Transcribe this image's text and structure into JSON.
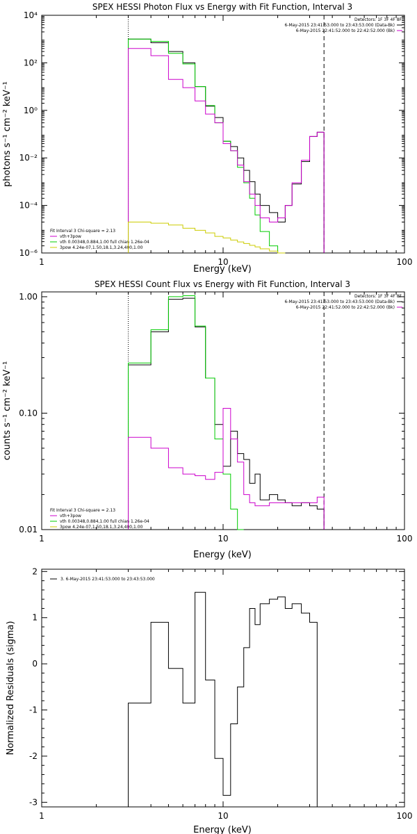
{
  "colors": {
    "data": "#000000",
    "bk": "#cc00cc",
    "total": "#cc00cc",
    "vth": "#00cc00",
    "thick2": "#cccc00"
  },
  "chart_data": [
    {
      "type": "line",
      "title": "SPEX HESSI Photon Flux vs Energy with Fit Function, Interval 3",
      "xlabel": "Energy (keV)",
      "ylabel": "photons s⁻¹ cm⁻² keV⁻¹",
      "xscale": "log",
      "yscale": "log",
      "xlim": [
        1,
        100
      ],
      "ylim": [
        1e-06,
        10000
      ],
      "xticks": [
        1,
        10,
        100
      ],
      "xticklabels": [
        "1",
        "10",
        "100"
      ],
      "yticks": [
        1e-06,
        0.0001,
        0.01,
        1,
        100,
        10000
      ],
      "yticklabels": [
        "10⁻⁶",
        "10⁻⁴",
        "10⁻²",
        "10⁰",
        "10²",
        "10⁴"
      ],
      "fit_range": [
        3,
        36
      ],
      "header": [
        "Detectors: 1F 3F 4F 8F",
        "6-May-2015 23:41:53.000 to 23:43:53.000 (Data-Bk)",
        "6-May-2015 22:41:52.000 to 22:42:52.000 (Bk)"
      ],
      "fit_legend": [
        "Fit Interval 3   Chi-square = 2.13",
        "vth+3pow",
        "vth 0.00348,0.884,1.00   full chian 1.26e-04",
        "3pow 4.24e-07,1.50,18.1,3.24,400,1.00"
      ],
      "edges": [
        3,
        4,
        5,
        6,
        7,
        8,
        9,
        10,
        11,
        12,
        13,
        14,
        15,
        16,
        18,
        20,
        22,
        24,
        27,
        30,
        33,
        36
      ],
      "series": [
        {
          "name": "Data-Bk",
          "color": "#000000",
          "values": [
            1000,
            700,
            300,
            100,
            10,
            1.5,
            0.5,
            0.05,
            0.03,
            0.01,
            0.003,
            0.001,
            0.0003,
            0.0001,
            5e-05,
            2e-05,
            0.0001,
            0.0008,
            0.007,
            0.08,
            0.12
          ]
        },
        {
          "name": "vth",
          "color": "#00cc00",
          "values": [
            1000,
            800,
            250,
            90,
            10,
            1.6,
            0.3,
            0.05,
            0.02,
            0.004,
            0.0009,
            0.0002,
            4e-05,
            8e-06,
            2e-06,
            9e-07
          ]
        },
        {
          "name": "vth+3pow",
          "color": "#cc00cc",
          "values": [
            400,
            200,
            20,
            9,
            2.5,
            0.7,
            0.3,
            0.04,
            0.02,
            0.005,
            0.001,
            0.0003,
            0.0001,
            3e-05,
            2e-05,
            3e-05,
            0.0001,
            0.0009,
            0.008,
            0.08,
            0.12
          ]
        },
        {
          "name": "3pow",
          "color": "#cccc00",
          "values": [
            2e-05,
            1.8e-05,
            1.5e-05,
            1.1e-05,
            9e-06,
            7e-06,
            5e-06,
            4.3e-06,
            3.5e-06,
            2.9e-06,
            2.5e-06,
            2.1e-06,
            1.8e-06,
            1.5e-06,
            1.2e-06,
            9e-07
          ]
        }
      ]
    },
    {
      "type": "line",
      "title": "SPEX HESSI Count Flux vs Energy with Fit Function, Interval 3",
      "xlabel": "Energy (keV)",
      "ylabel": "counts s⁻¹ cm⁻² keV⁻¹",
      "xscale": "log",
      "yscale": "log",
      "xlim": [
        1,
        100
      ],
      "ylim": [
        0.01,
        1.1
      ],
      "xticks": [
        1,
        10,
        100
      ],
      "xticklabels": [
        "1",
        "10",
        "100"
      ],
      "yticks": [
        0.01,
        0.1,
        1.0
      ],
      "yticklabels": [
        "0.01",
        "0.10",
        "1.00"
      ],
      "fit_range": [
        3,
        36
      ],
      "header": [
        "Detectors: 1F 3F 4F 8F",
        "6-May-2015 23:41:53.000 to 23:43:53.000 (Data-Bk)",
        "6-May-2015 22:41:52.000 to 22:42:52.000 (Bk)"
      ],
      "fit_legend": [
        "Fit Interval 3   Chi-square = 2.13",
        "vth+3pow",
        "vth 0.00348,0.884,1.00   full chian 1.26e-04",
        "3pow 4.24e-07,1.50,18.1,3.24,400,1.00"
      ],
      "edges": [
        3,
        4,
        5,
        6,
        7,
        8,
        9,
        10,
        11,
        12,
        13,
        14,
        15,
        16,
        18,
        20,
        22,
        24,
        27,
        30,
        33,
        36
      ],
      "series": [
        {
          "name": "Data-Bk",
          "color": "#000000",
          "values": [
            0.26,
            0.5,
            0.95,
            0.97,
            0.55,
            0.2,
            0.08,
            0.035,
            0.07,
            0.045,
            0.04,
            0.025,
            0.03,
            0.018,
            0.02,
            0.018,
            0.017,
            0.016,
            0.017,
            0.016,
            0.015
          ]
        },
        {
          "name": "vth",
          "color": "#00cc00",
          "values": [
            0.27,
            0.52,
            1.0,
            1.02,
            0.56,
            0.2,
            0.06,
            0.03,
            0.015,
            0.008
          ]
        },
        {
          "name": "Bk",
          "color": "#cc00cc",
          "values": [
            0.062,
            0.05,
            0.034,
            0.03,
            0.029,
            0.027,
            0.031,
            0.11,
            0.06,
            0.038,
            0.02,
            0.017,
            0.016,
            0.016,
            0.017,
            0.017,
            0.017,
            0.017,
            0.017,
            0.017,
            0.019
          ]
        }
      ]
    },
    {
      "type": "line",
      "title": "",
      "xlabel": "Energy (keV)",
      "ylabel": "Normalized Residuals (sigma)",
      "xscale": "log",
      "yscale": "linear",
      "xlim": [
        1,
        100
      ],
      "ylim": [
        -3.1,
        2.05
      ],
      "xticks": [
        1,
        10,
        100
      ],
      "xticklabels": [
        "1",
        "10",
        "100"
      ],
      "yticks": [
        -3,
        -2,
        -1,
        0,
        1,
        2
      ],
      "yticklabels": [
        "-3",
        "-2",
        "-1",
        "0",
        "1",
        "2"
      ],
      "legend": "3.  6-May-2015 23:41:53.000 to 23:43:53.000",
      "edges": [
        3,
        4,
        5,
        6,
        7,
        8,
        9,
        10,
        11,
        12,
        13,
        14,
        15,
        16,
        18,
        20,
        22,
        24,
        27,
        30,
        33,
        36
      ],
      "series": [
        {
          "name": "3.  6-May-2015 23:41:53.000 to 23:43:53.000",
          "color": "#000000",
          "values": [
            -0.85,
            0.9,
            -0.1,
            -0.85,
            1.55,
            -0.35,
            -2.05,
            -2.85,
            -1.3,
            -0.5,
            0.35,
            1.2,
            0.85,
            1.3,
            1.4,
            1.45,
            1.2,
            1.3,
            1.1,
            0.9,
            -3.1
          ]
        }
      ]
    }
  ]
}
